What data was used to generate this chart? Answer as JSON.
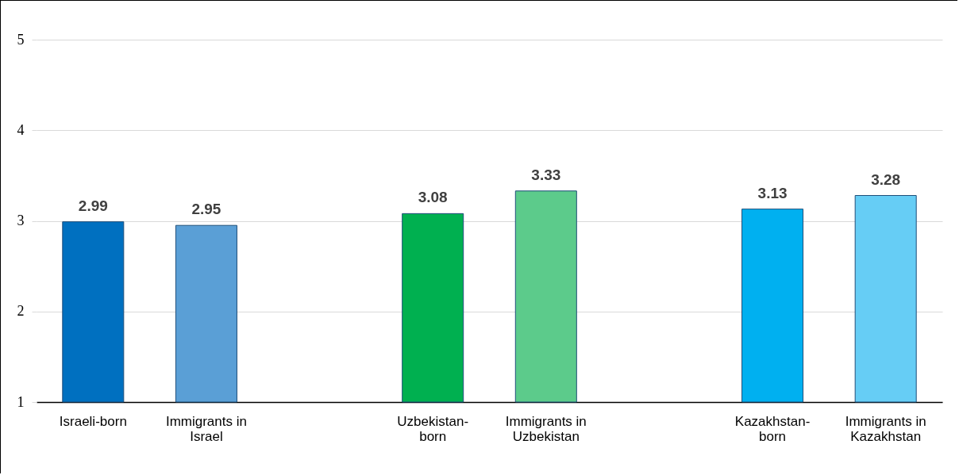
{
  "chart_data": {
    "type": "bar",
    "categories": [
      "Israeli-born",
      "Immigrants in Israel",
      null,
      "Uzbekistan-born",
      "Immigrants in Uzbekistan",
      null,
      "Kazakhstan-born",
      "Immigrants in Kazakhstan"
    ],
    "values": [
      2.99,
      2.95,
      null,
      3.08,
      3.33,
      null,
      3.13,
      3.28
    ],
    "colors": [
      "#0070c0",
      "#5a9fd6",
      null,
      "#00b050",
      "#5ccb8b",
      null,
      "#00b0f0",
      "#66cdf5"
    ],
    "ylim": [
      1,
      5
    ],
    "yticks": [
      1,
      2,
      3,
      4,
      5
    ],
    "grid": "y",
    "data_labels": true
  }
}
